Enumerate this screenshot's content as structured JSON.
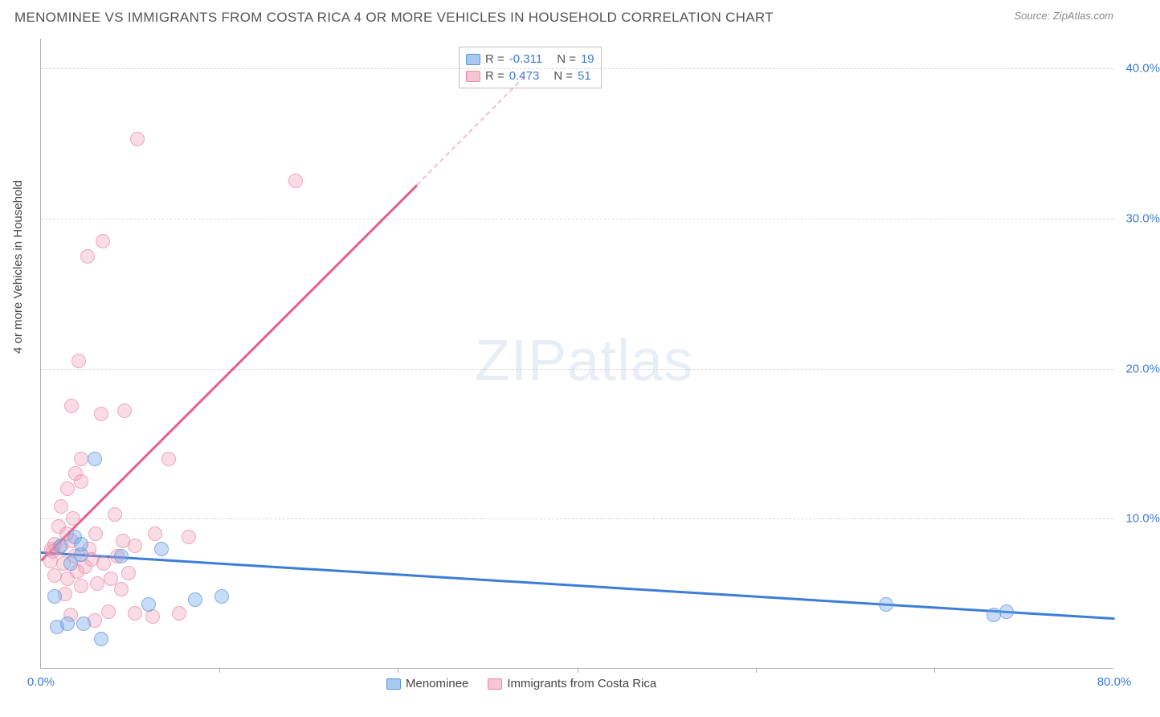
{
  "header": {
    "title": "MENOMINEE VS IMMIGRANTS FROM COSTA RICA 4 OR MORE VEHICLES IN HOUSEHOLD CORRELATION CHART",
    "source": "Source: ZipAtlas.com"
  },
  "chart": {
    "type": "scatter",
    "ylabel": "4 or more Vehicles in Household",
    "xlim": [
      0,
      80
    ],
    "ylim": [
      0,
      42
    ],
    "yticks": [
      {
        "value": 10,
        "label": "10.0%"
      },
      {
        "value": 20,
        "label": "20.0%"
      },
      {
        "value": 30,
        "label": "30.0%"
      },
      {
        "value": 40,
        "label": "40.0%"
      }
    ],
    "xticks": [
      {
        "value": 0,
        "label": "0.0%"
      },
      {
        "value": 80,
        "label": "80.0%"
      }
    ],
    "xtick_marks": [
      13.3,
      26.6,
      40,
      53.3,
      66.6
    ],
    "colors": {
      "blue_fill": "#6ca4e8",
      "blue_stroke": "#5a94da",
      "blue_line": "#3b7dd8",
      "pink_fill": "#f096af",
      "pink_stroke": "#e88aa8",
      "pink_line": "#e85d8a",
      "grid": "#d8d8d8",
      "axis": "#b0b0b0",
      "tick_text": "#3b7dd8",
      "text": "#555555",
      "background": "#ffffff"
    },
    "legend_box": {
      "rows": [
        {
          "series": "blue",
          "r_label": "R =",
          "r_value": "-0.311",
          "n_label": "N =",
          "n_value": "19"
        },
        {
          "series": "pink",
          "r_label": "R =",
          "r_value": "0.473",
          "n_label": "N =",
          "n_value": "51"
        }
      ]
    },
    "bottom_legend": [
      {
        "series": "blue",
        "label": "Menominee"
      },
      {
        "series": "pink",
        "label": "Immigrants from Costa Rica"
      }
    ],
    "trend_lines": {
      "blue": {
        "x1": 0,
        "y1": 7.8,
        "x2": 80,
        "y2": 3.4
      },
      "pink": {
        "x1": 0,
        "y1": 7.3,
        "x2": 28,
        "y2": 32.3
      },
      "pink_dashed": {
        "x1": 28,
        "y1": 32.3,
        "x2": 36,
        "y2": 39.5
      }
    },
    "series_blue": [
      {
        "x": 1.0,
        "y": 4.8
      },
      {
        "x": 2.5,
        "y": 8.8
      },
      {
        "x": 3.0,
        "y": 7.6
      },
      {
        "x": 4.0,
        "y": 14.0
      },
      {
        "x": 1.2,
        "y": 2.8
      },
      {
        "x": 2.0,
        "y": 3.0
      },
      {
        "x": 4.5,
        "y": 2.0
      },
      {
        "x": 8.0,
        "y": 4.3
      },
      {
        "x": 9.0,
        "y": 8.0
      },
      {
        "x": 11.5,
        "y": 4.6
      },
      {
        "x": 13.5,
        "y": 4.8
      },
      {
        "x": 63.0,
        "y": 4.3
      },
      {
        "x": 71.0,
        "y": 3.6
      },
      {
        "x": 72.0,
        "y": 3.8
      },
      {
        "x": 6.0,
        "y": 7.5
      },
      {
        "x": 3.0,
        "y": 8.3
      },
      {
        "x": 2.2,
        "y": 7.0
      },
      {
        "x": 1.5,
        "y": 8.2
      },
      {
        "x": 3.2,
        "y": 3.0
      }
    ],
    "series_pink": [
      {
        "x": 0.7,
        "y": 7.2
      },
      {
        "x": 1.0,
        "y": 6.2
      },
      {
        "x": 1.0,
        "y": 8.3
      },
      {
        "x": 1.3,
        "y": 9.5
      },
      {
        "x": 1.5,
        "y": 10.8
      },
      {
        "x": 1.7,
        "y": 7.0
      },
      {
        "x": 2.0,
        "y": 6.0
      },
      {
        "x": 2.0,
        "y": 12.0
      },
      {
        "x": 2.3,
        "y": 8.5
      },
      {
        "x": 2.3,
        "y": 17.5
      },
      {
        "x": 2.5,
        "y": 7.5
      },
      {
        "x": 2.6,
        "y": 13.0
      },
      {
        "x": 2.7,
        "y": 6.5
      },
      {
        "x": 2.8,
        "y": 20.5
      },
      {
        "x": 3.0,
        "y": 5.5
      },
      {
        "x": 3.0,
        "y": 12.5
      },
      {
        "x": 3.0,
        "y": 14.0
      },
      {
        "x": 3.3,
        "y": 6.8
      },
      {
        "x": 3.5,
        "y": 27.5
      },
      {
        "x": 3.6,
        "y": 8.0
      },
      {
        "x": 4.0,
        "y": 3.2
      },
      {
        "x": 4.1,
        "y": 9.0
      },
      {
        "x": 4.2,
        "y": 5.7
      },
      {
        "x": 4.5,
        "y": 17.0
      },
      {
        "x": 4.6,
        "y": 28.5
      },
      {
        "x": 4.7,
        "y": 7.0
      },
      {
        "x": 5.0,
        "y": 3.8
      },
      {
        "x": 5.2,
        "y": 6.0
      },
      {
        "x": 5.5,
        "y": 10.3
      },
      {
        "x": 5.7,
        "y": 7.5
      },
      {
        "x": 6.0,
        "y": 5.3
      },
      {
        "x": 6.1,
        "y": 8.5
      },
      {
        "x": 6.2,
        "y": 17.2
      },
      {
        "x": 6.5,
        "y": 6.4
      },
      {
        "x": 7.0,
        "y": 3.7
      },
      {
        "x": 7.0,
        "y": 8.2
      },
      {
        "x": 7.2,
        "y": 35.3
      },
      {
        "x": 8.3,
        "y": 3.5
      },
      {
        "x": 8.5,
        "y": 9.0
      },
      {
        "x": 9.5,
        "y": 14.0
      },
      {
        "x": 10.3,
        "y": 3.7
      },
      {
        "x": 11.0,
        "y": 8.8
      },
      {
        "x": 19.0,
        "y": 32.5
      },
      {
        "x": 1.8,
        "y": 5.0
      },
      {
        "x": 2.2,
        "y": 3.6
      },
      {
        "x": 3.8,
        "y": 7.3
      },
      {
        "x": 0.9,
        "y": 7.8
      },
      {
        "x": 1.4,
        "y": 8.1
      },
      {
        "x": 1.9,
        "y": 9.0
      },
      {
        "x": 2.4,
        "y": 10.0
      },
      {
        "x": 0.8,
        "y": 8.0
      }
    ],
    "watermark": {
      "zip": "ZIP",
      "atlas": "atlas"
    }
  }
}
